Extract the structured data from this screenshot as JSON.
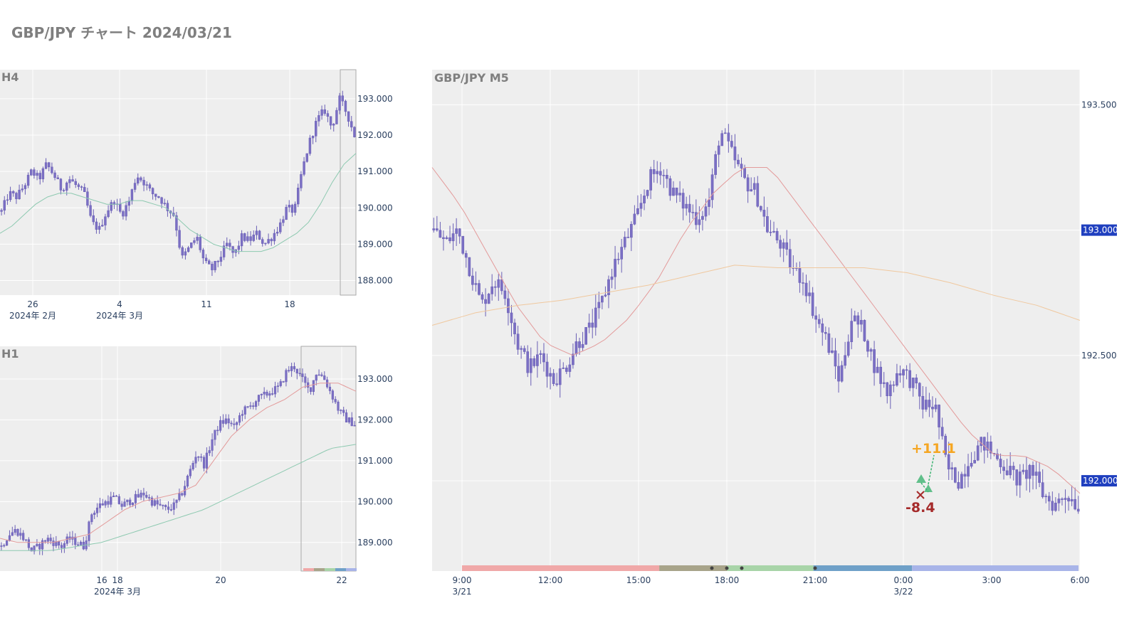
{
  "page": {
    "title": "GBP/JPY チャート 2024/03/21"
  },
  "colors": {
    "plot_bg": "#eeeeee",
    "grid": "#ffffff",
    "candle": "#7b6fc4",
    "wick": "#6a5fb5",
    "ma_short": "#e39a9a",
    "ma_long": "#f0c89e",
    "ma_green": "#8dc9b0",
    "price_box": "#1f3fbf",
    "annotation_up": "#f5a623",
    "annotation_down": "#a52a2a",
    "trade_up": "#3cb371",
    "trade_x": "#a52a2a"
  },
  "chart_data": [
    {
      "id": "h4",
      "type": "candlestick",
      "title": "H4",
      "y_ticks": [
        "193.000",
        "192.000",
        "191.000",
        "190.000",
        "189.000",
        "188.000"
      ],
      "x_ticks": [
        {
          "label": "26",
          "sublabel": "2024年 2月"
        },
        {
          "label": "4",
          "sublabel": "2024年 3月"
        },
        {
          "label": "11",
          "sublabel": ""
        },
        {
          "label": "18",
          "sublabel": ""
        }
      ],
      "ylim": [
        187.6,
        193.8
      ],
      "highlight_box": "last day (2024/03/21)",
      "close_path": [
        189.9,
        190.4,
        190.3,
        190.6,
        191.0,
        190.8,
        191.2,
        190.9,
        190.5,
        190.8,
        190.6,
        190.4,
        189.6,
        189.4,
        189.9,
        190.2,
        189.8,
        190.2,
        190.9,
        190.7,
        190.4,
        190.3,
        190.0,
        189.8,
        188.6,
        188.9,
        189.2,
        188.5,
        188.3,
        188.6,
        189.0,
        188.7,
        189.2,
        189.1,
        189.3,
        189.0,
        189.2,
        189.5,
        190.0,
        189.9,
        191.0,
        191.8,
        192.4,
        192.7,
        192.2,
        193.0,
        192.6,
        192.0
      ],
      "ma_green_path": [
        189.3,
        189.5,
        189.8,
        190.1,
        190.3,
        190.4,
        190.4,
        190.3,
        190.2,
        190.1,
        190.1,
        190.2,
        190.2,
        190.1,
        190.0,
        189.7,
        189.4,
        189.2,
        189.0,
        188.9,
        188.8,
        188.8,
        188.8,
        188.9,
        189.1,
        189.3,
        189.6,
        190.1,
        190.7,
        191.2,
        191.5
      ]
    },
    {
      "id": "h1",
      "type": "candlestick",
      "title": "H1",
      "y_ticks": [
        "193.000",
        "192.000",
        "191.000",
        "190.000",
        "189.000"
      ],
      "x_ticks": [
        {
          "label": "16",
          "sublabel": ""
        },
        {
          "label": "18",
          "sublabel": "2024年 3月"
        },
        {
          "label": "20",
          "sublabel": ""
        },
        {
          "label": "22",
          "sublabel": ""
        }
      ],
      "ylim": [
        188.3,
        193.8
      ],
      "highlight_box": "last day (2024/03/21)",
      "close_path": [
        188.9,
        189.2,
        189.3,
        189.1,
        188.8,
        188.9,
        189.1,
        189.0,
        188.9,
        189.1,
        189.0,
        188.9,
        189.7,
        189.9,
        190.0,
        190.1,
        189.9,
        190.0,
        190.1,
        190.2,
        190.0,
        189.9,
        189.8,
        189.9,
        190.2,
        190.7,
        191.2,
        190.9,
        191.5,
        191.9,
        192.0,
        191.8,
        192.2,
        192.3,
        192.5,
        192.6,
        192.7,
        192.8,
        193.2,
        193.3,
        193.0,
        192.7,
        193.2,
        193.0,
        192.6,
        192.2,
        192.0,
        191.9
      ],
      "ma_short_path": [
        189.1,
        189.0,
        189.0,
        189.0,
        189.1,
        189.2,
        189.5,
        189.8,
        190.0,
        190.1,
        190.2,
        190.4,
        191.0,
        191.6,
        192.0,
        192.3,
        192.5,
        192.8,
        192.9,
        192.9,
        192.7
      ],
      "ma_green_path": [
        188.8,
        188.8,
        188.8,
        188.9,
        189.0,
        189.2,
        189.4,
        189.6,
        189.8,
        190.1,
        190.4,
        190.7,
        191.0,
        191.3,
        191.4
      ]
    },
    {
      "id": "m5",
      "type": "candlestick",
      "title": "GBP/JPY M5",
      "y_ticks": [
        "193.500",
        "193.000",
        "192.500",
        "192.000"
      ],
      "price_labels": [
        "193.000",
        "192.000"
      ],
      "x_ticks": [
        {
          "label": "9:00",
          "sublabel": "3/21"
        },
        {
          "label": "12:00",
          "sublabel": ""
        },
        {
          "label": "15:00",
          "sublabel": ""
        },
        {
          "label": "18:00",
          "sublabel": ""
        },
        {
          "label": "21:00",
          "sublabel": ""
        },
        {
          "label": "0:00",
          "sublabel": "3/22"
        },
        {
          "label": "3:00",
          "sublabel": ""
        },
        {
          "label": "6:00",
          "sublabel": ""
        }
      ],
      "ylim": [
        191.64,
        193.64
      ],
      "close_path": [
        193.0,
        192.95,
        193.0,
        192.85,
        192.7,
        192.8,
        192.75,
        192.55,
        192.45,
        192.5,
        192.4,
        192.45,
        192.55,
        192.6,
        192.7,
        192.85,
        192.95,
        193.05,
        193.2,
        193.25,
        193.15,
        193.1,
        193.05,
        193.1,
        193.4,
        193.3,
        193.2,
        193.15,
        193.0,
        192.95,
        192.85,
        192.8,
        192.65,
        192.55,
        192.4,
        192.65,
        192.6,
        192.45,
        192.35,
        192.45,
        192.4,
        192.3,
        192.3,
        192.05,
        192.0,
        192.1,
        192.15,
        192.1,
        192.05,
        192.0,
        192.05,
        191.95,
        191.9,
        191.95,
        191.9
      ],
      "ma_short_path": [
        193.25,
        193.1,
        192.9,
        192.7,
        192.55,
        192.5,
        192.55,
        192.65,
        192.8,
        193.0,
        193.15,
        193.25,
        193.25,
        193.1,
        192.95,
        192.8,
        192.65,
        192.5,
        192.35,
        192.2,
        192.1,
        192.1,
        192.05,
        191.95
      ],
      "ma_long_path": [
        192.62,
        192.67,
        192.7,
        192.72,
        192.75,
        192.78,
        192.82,
        192.86,
        192.85,
        192.85,
        192.85,
        192.83,
        192.79,
        192.74,
        192.7,
        192.64
      ],
      "annotations": [
        {
          "text": "+11.1",
          "kind": "profit",
          "x_time": "1:10",
          "y": 192.13
        },
        {
          "text": "-8.4",
          "kind": "loss",
          "x_time": "0:50",
          "y": 191.93
        }
      ],
      "session_bar": [
        {
          "name": "tokyo",
          "color": "#f0a8a8",
          "from": 0.0,
          "to": 0.32
        },
        {
          "name": "overlap",
          "color": "#a8a48a",
          "from": 0.32,
          "to": 0.43
        },
        {
          "name": "london",
          "color": "#a8d4a8",
          "from": 0.43,
          "to": 0.57
        },
        {
          "name": "newyork",
          "color": "#6fa0c8",
          "from": 0.57,
          "to": 0.73
        },
        {
          "name": "late",
          "color": "#a8b4e8",
          "from": 0.73,
          "to": 1.0
        }
      ]
    }
  ]
}
